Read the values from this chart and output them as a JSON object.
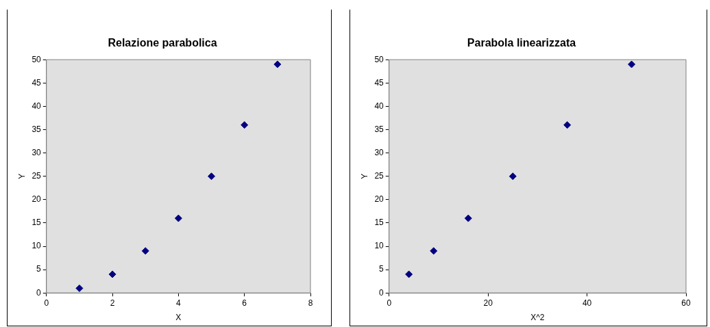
{
  "chart_data": [
    {
      "type": "scatter",
      "title": "Relazione parabolica",
      "xlabel": "X",
      "ylabel": "Y",
      "marker": "diamond",
      "series": [
        {
          "color": "#000080",
          "x": [
            1,
            2,
            3,
            4,
            5,
            6,
            7
          ],
          "values": [
            1,
            4,
            9,
            16,
            25,
            36,
            49
          ]
        }
      ],
      "xlim": [
        0,
        8
      ],
      "xticks": [
        0,
        2,
        4,
        6,
        8
      ],
      "ylim": [
        0,
        50
      ],
      "yticks": [
        0,
        5,
        10,
        15,
        20,
        25,
        30,
        35,
        40,
        45,
        50
      ]
    },
    {
      "type": "scatter",
      "title": "Parabola linearizzata",
      "xlabel": "X^2",
      "ylabel": "Y",
      "marker": "diamond",
      "series": [
        {
          "color": "#000080",
          "x": [
            4,
            9,
            16,
            25,
            36,
            49
          ],
          "values": [
            4,
            9,
            16,
            25,
            36,
            49
          ]
        }
      ],
      "xlim": [
        0,
        60
      ],
      "xticks": [
        0,
        20,
        40,
        60
      ],
      "ylim": [
        0,
        50
      ],
      "yticks": [
        0,
        5,
        10,
        15,
        20,
        25,
        30,
        35,
        40,
        45,
        50
      ]
    }
  ]
}
